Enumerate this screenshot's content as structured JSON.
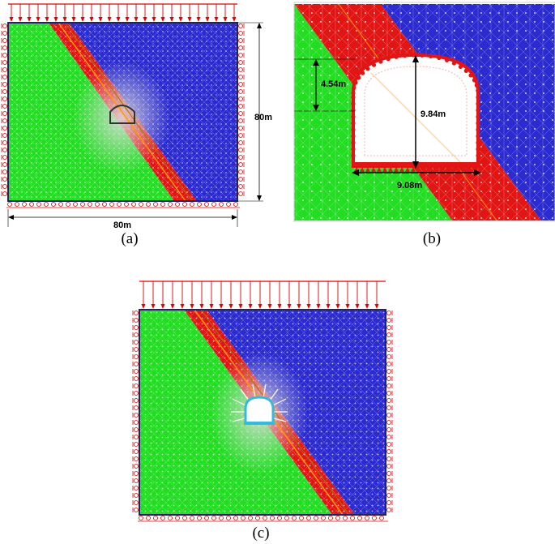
{
  "panels": [
    {
      "caption": "(a)",
      "dimensions": {
        "height_label": "80m",
        "width_label": "80m"
      }
    },
    {
      "caption": "(b)",
      "dimensions": {
        "side_height_label": "4.54m",
        "total_height_label": "9.84m",
        "width_label": "9.08m"
      }
    },
    {
      "caption": "(c)"
    }
  ],
  "colors": {
    "soft_rock": "#22dd22",
    "fault_zone": "#e21515",
    "hard_rock": "#2b2bd0",
    "load_arrows": "#e00000",
    "support": "#33bbdd",
    "interface_line": "#ff9900"
  }
}
